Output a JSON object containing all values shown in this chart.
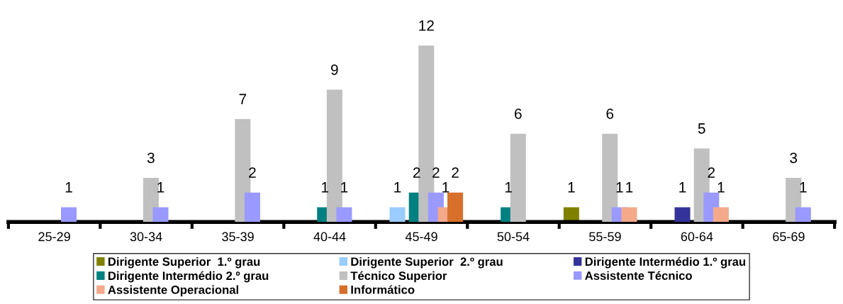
{
  "chart_data": {
    "type": "bar",
    "categories": [
      "25-29",
      "30-34",
      "35-39",
      "40-44",
      "45-49",
      "50-54",
      "55-59",
      "60-64",
      "65-69"
    ],
    "series": [
      {
        "name": "Dirigente Superior  1.º grau",
        "color": "#808000",
        "values": [
          null,
          null,
          null,
          null,
          null,
          null,
          1,
          null,
          null
        ]
      },
      {
        "name": "Dirigente Superior  2.º grau",
        "color": "#99ccff",
        "values": [
          null,
          null,
          null,
          null,
          1,
          null,
          null,
          null,
          null
        ]
      },
      {
        "name": "Dirigente Intermédio 1.º grau",
        "color": "#333399",
        "values": [
          null,
          null,
          null,
          null,
          null,
          null,
          null,
          1,
          null
        ]
      },
      {
        "name": "Dirigente Intermédio 2.º grau",
        "color": "#008080",
        "values": [
          null,
          null,
          null,
          1,
          2,
          1,
          null,
          null,
          null
        ]
      },
      {
        "name": "Técnico Superior",
        "color": "#c0c0c0",
        "values": [
          null,
          3,
          7,
          9,
          12,
          6,
          6,
          5,
          3
        ]
      },
      {
        "name": "Assistente Técnico",
        "color": "#9999ff",
        "values": [
          1,
          1,
          2,
          1,
          2,
          null,
          1,
          2,
          1
        ]
      },
      {
        "name": "Assistente Operacional",
        "color": "#f4a98a",
        "values": [
          null,
          null,
          null,
          null,
          1,
          null,
          1,
          1,
          null
        ]
      },
      {
        "name": "Informático",
        "color": "#d86f2b",
        "values": [
          null,
          null,
          null,
          null,
          2,
          null,
          null,
          null,
          null
        ]
      }
    ],
    "tick_labels": "x",
    "data_labels": true,
    "grid": false,
    "legend": "bottom"
  }
}
